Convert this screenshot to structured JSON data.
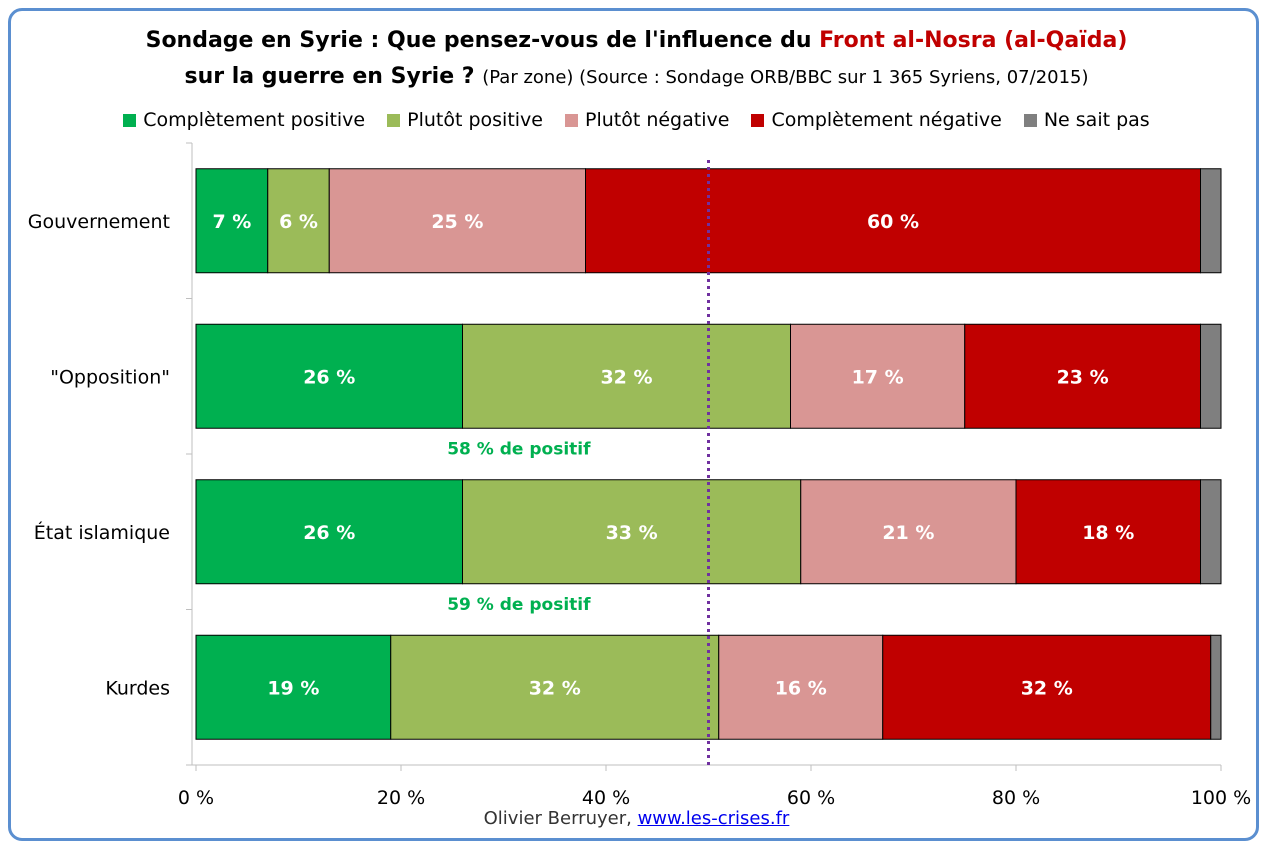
{
  "title": {
    "line1_prefix": "Sondage en Syrie : Que pensez-vous de l'influence du",
    "line1_highlight": "Front al-Nosra (al-Qaïda)",
    "line2_main": "sur la guerre en Syrie ?",
    "line2_sub": "(Par zone) (Source : Sondage ORB/BBC sur 1 365 Syriens, 07/2015)"
  },
  "footer": {
    "author": "Olivier Berruyer,",
    "link": "www.les-crises.fr"
  },
  "chart_data": {
    "type": "bar",
    "orientation": "horizontal",
    "stacked": true,
    "categories": [
      "Gouvernement",
      "\"Opposition\"",
      "État islamique",
      "Kurdes"
    ],
    "series": [
      {
        "name": "Complètement positive",
        "color": "#00b050",
        "values": [
          7,
          26,
          26,
          19
        ],
        "labels": [
          "7 %",
          "26 %",
          "26 %",
          "19 %"
        ]
      },
      {
        "name": "Plutôt positive",
        "color": "#9bbb59",
        "values": [
          6,
          32,
          33,
          32
        ],
        "labels": [
          "6 %",
          "32 %",
          "33 %",
          "32 %"
        ]
      },
      {
        "name": "Plutôt négative",
        "color": "#d99694",
        "values": [
          25,
          17,
          21,
          16
        ],
        "labels": [
          "25 %",
          "17 %",
          "21 %",
          "16 %"
        ]
      },
      {
        "name": "Complètement négative",
        "color": "#c00000",
        "values": [
          60,
          23,
          18,
          32
        ],
        "labels": [
          "60 %",
          "23 %",
          "18 %",
          "32 %"
        ]
      },
      {
        "name": "Ne sait pas",
        "color": "#7f7f7f",
        "values": [
          2,
          2,
          2,
          1
        ],
        "labels": [
          "",
          "",
          "",
          ""
        ]
      }
    ],
    "xlim": [
      0,
      100
    ],
    "xticks": [
      "0 %",
      "20 %",
      "40 %",
      "60 %",
      "80 %",
      "100 %"
    ],
    "reference_line": {
      "x": 50,
      "color": "#7030a0",
      "style": "dotted"
    },
    "annotations": [
      {
        "text": "58 % de positif",
        "category_index": 1,
        "color": "#00b050"
      },
      {
        "text": "59 % de positif",
        "category_index": 2,
        "color": "#00b050"
      }
    ],
    "legend_position": "top"
  }
}
